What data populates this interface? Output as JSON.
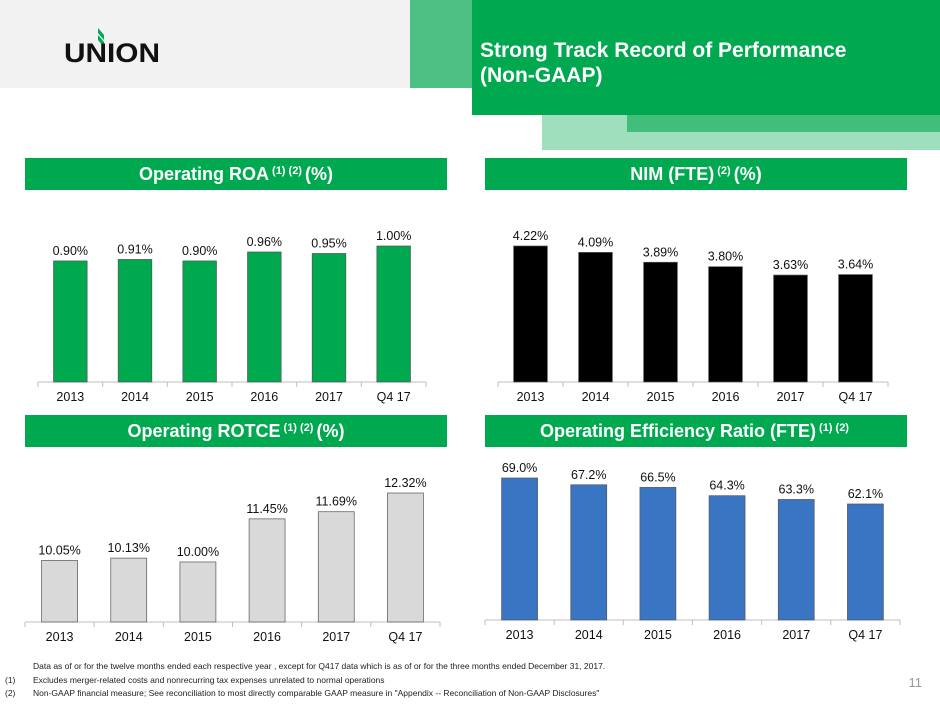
{
  "header": {
    "logo_text": "UNION",
    "title_line1": "Strong Track Record of Performance",
    "title_line2": "(Non-GAAP)"
  },
  "colors": {
    "brand_green": "#00a94f",
    "nim_bar": "#000000",
    "rotce_bar": "#d9d9d9",
    "efficiency_bar": "#3a75c4"
  },
  "sections": [
    {
      "title": "Operating ROA",
      "notes": "(1) (2)",
      "unit": "(%)"
    },
    {
      "title": "NIM (FTE)",
      "notes": "(2)",
      "unit": "(%)"
    },
    {
      "title": "Operating ROTCE",
      "notes": "(1) (2)",
      "unit": "(%)"
    },
    {
      "title": "Operating Efficiency Ratio (FTE)",
      "notes": "(1) (2)",
      "unit": ""
    }
  ],
  "chart_data": [
    {
      "type": "bar",
      "categories": [
        "2013",
        "2014",
        "2015",
        "2016",
        "2017",
        "Q4 17"
      ],
      "values": [
        0.9,
        0.91,
        0.9,
        0.96,
        0.95,
        1.0
      ],
      "labels": [
        "0.90%",
        "0.91%",
        "0.90%",
        "0.96%",
        "0.95%",
        "1.00%"
      ],
      "ylim": [
        0.09,
        1.0
      ],
      "color": "#00a94f",
      "grid": false
    },
    {
      "type": "bar",
      "categories": [
        "2013",
        "2014",
        "2015",
        "2016",
        "2017",
        "Q4 17"
      ],
      "values": [
        4.22,
        4.09,
        3.89,
        3.8,
        3.63,
        3.64
      ],
      "labels": [
        "4.22%",
        "4.09%",
        "3.89%",
        "3.80%",
        "3.63%",
        "3.64%"
      ],
      "ylim": [
        1.46,
        4.22
      ],
      "color": "#000000",
      "grid": false
    },
    {
      "type": "bar",
      "categories": [
        "2013",
        "2014",
        "2015",
        "2016",
        "2017",
        "Q4 17"
      ],
      "values": [
        10.05,
        10.13,
        10.0,
        11.45,
        11.69,
        12.32
      ],
      "labels": [
        "10.05%",
        "10.13%",
        "10.00%",
        "11.45%",
        "11.69%",
        "12.32%"
      ],
      "ylim": [
        7.98,
        12.32
      ],
      "color": "#d9d9d9",
      "grid": false
    },
    {
      "type": "bar",
      "categories": [
        "2013",
        "2014",
        "2015",
        "2016",
        "2017",
        "Q4 17"
      ],
      "values": [
        69.0,
        67.2,
        66.5,
        64.3,
        63.3,
        62.1
      ],
      "labels": [
        "69.0%",
        "67.2%",
        "66.5%",
        "64.3%",
        "63.3%",
        "62.1%"
      ],
      "ylim": [
        31.3,
        69.0
      ],
      "color": "#3a75c4",
      "grid": false
    }
  ],
  "footnotes": {
    "intro": "Data as of or for the twelve months ended each respective year , except for Q417 data which is as of or for the three months ended December 31, 2017.",
    "n1_marker": "(1)",
    "n1": "Excludes merger-related costs and nonrecurring tax expenses unrelated to normal operations",
    "n2_marker": "(2)",
    "n2": "Non-GAAP financial measure; See reconciliation to most directly comparable GAAP measure in \"Appendix -- Reconciliation of Non-GAAP Disclosures\""
  },
  "page_number": "11"
}
